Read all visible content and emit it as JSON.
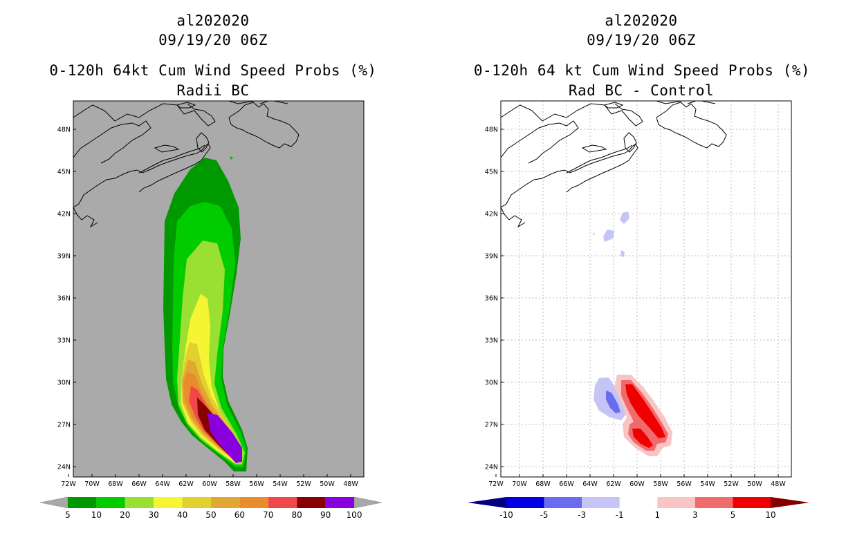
{
  "panels": [
    {
      "title_id": "al202020",
      "title_date": "09/19/20 06Z",
      "title_main": "0-120h 64kt Cum Wind Speed Probs (%)",
      "subtitle": "Radii BC",
      "background": "#aaaaaa",
      "colorbar": {
        "labels": [
          "5",
          "10",
          "20",
          "30",
          "40",
          "50",
          "60",
          "70",
          "80",
          "90",
          "100"
        ],
        "colors": [
          "#009900",
          "#00cc00",
          "#99e033",
          "#f5f532",
          "#e0d030",
          "#e0a832",
          "#e88c2c",
          "#f04848",
          "#880000",
          "#8800dd"
        ],
        "end_color": "#a8a8a8"
      }
    },
    {
      "title_id": "al202020",
      "title_date": "09/19/20 06Z",
      "title_main": "0-120h 64 kt Cum Wind Speed Probs (%)",
      "subtitle": "Rad BC - Control",
      "background": "#ffffff",
      "colorbar": {
        "labels": [
          "-10",
          "-5",
          "-3",
          "-1",
          "1",
          "3",
          "5",
          "10"
        ],
        "colors": [
          "#0000e0",
          "#6b6bf0",
          "#c4c4f6",
          "#ffffff",
          "#f8c4c4",
          "#f06b6b",
          "#ee0000"
        ],
        "end_left": "#000080",
        "end_right": "#800000"
      }
    }
  ],
  "axes": {
    "lat_labels": [
      "48N",
      "45N",
      "42N",
      "39N",
      "36N",
      "33N",
      "30N",
      "27N",
      "24N"
    ],
    "lon_labels": [
      "72W",
      "70W",
      "68W",
      "66W",
      "64W",
      "62W",
      "60W",
      "58W",
      "56W",
      "54W",
      "52W",
      "50W",
      "48W"
    ]
  }
}
